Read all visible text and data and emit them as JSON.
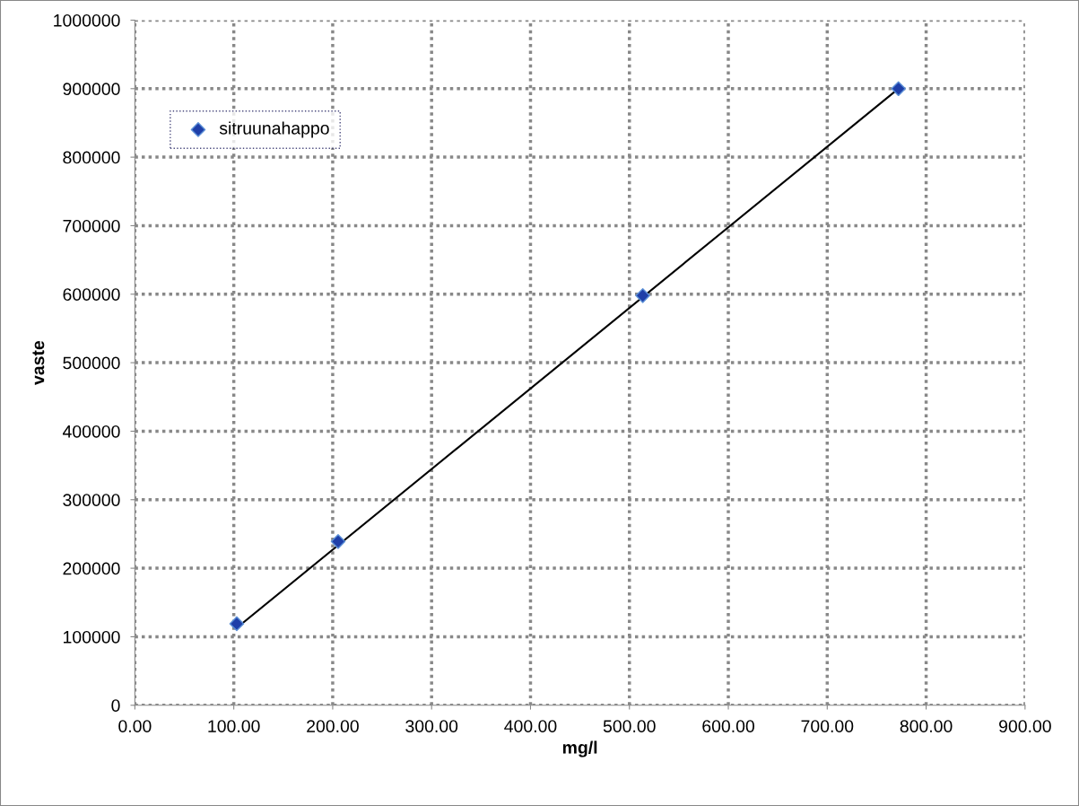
{
  "chart_data": {
    "type": "scatter",
    "xlabel": "mg/l",
    "ylabel": "vaste",
    "series": [
      {
        "name": "sitruunahappo",
        "color": "#1f3fa8",
        "marker": "diamond",
        "x": [
          103,
          205.5,
          513.5,
          772
        ],
        "values": [
          119000,
          239000,
          598000,
          900000
        ]
      },
      {
        "type": "line",
        "color": "#000000",
        "marker": "none",
        "line_style": "solid",
        "x": [
          103,
          772
        ],
        "values": [
          113000,
          900000
        ]
      }
    ],
    "xlim": [
      0,
      900
    ],
    "xticks": [
      {
        "value": 0,
        "label": "0.00"
      },
      {
        "value": 100,
        "label": "100.00"
      },
      {
        "value": 200,
        "label": "200.00"
      },
      {
        "value": 300,
        "label": "300.00"
      },
      {
        "value": 400,
        "label": "400.00"
      },
      {
        "value": 500,
        "label": "500.00"
      },
      {
        "value": 600,
        "label": "600.00"
      },
      {
        "value": 700,
        "label": "700.00"
      },
      {
        "value": 800,
        "label": "800.00"
      },
      {
        "value": 900,
        "label": "900.00"
      }
    ],
    "ylim": [
      0,
      1000000
    ],
    "yticks": [
      0,
      100000,
      200000,
      300000,
      400000,
      500000,
      600000,
      700000,
      800000,
      900000,
      1000000
    ],
    "grid": true,
    "legend": "top left"
  }
}
